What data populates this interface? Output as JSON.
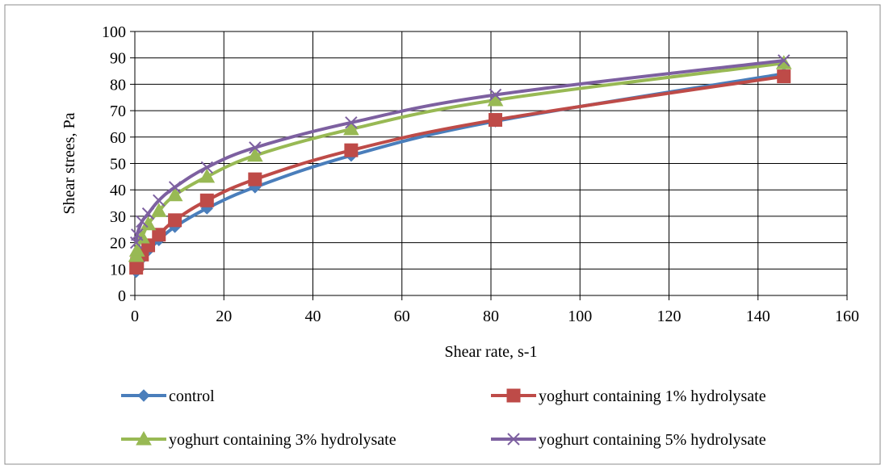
{
  "chart_data": {
    "type": "line",
    "title": "",
    "xlabel": "Shear rate, s-1",
    "ylabel": "Shear  strees, Pa",
    "xlim": [
      0,
      160
    ],
    "ylim": [
      0,
      100
    ],
    "xticks": [
      0,
      20,
      40,
      60,
      80,
      100,
      120,
      140,
      160
    ],
    "yticks": [
      0,
      10,
      20,
      30,
      40,
      50,
      60,
      70,
      80,
      90,
      100
    ],
    "grid": true,
    "legend_position": "bottom",
    "series": [
      {
        "name": "control",
        "color": "#4a7ebb",
        "marker": "diamond",
        "x": [
          0.3,
          0.5,
          1.6,
          3,
          5.4,
          9,
          16.2,
          27,
          48.6,
          81,
          145.8
        ],
        "y": [
          9,
          11,
          14,
          17,
          21,
          26,
          33,
          41,
          53,
          66,
          84
        ]
      },
      {
        "name": "yoghurt containing 1% hydrolysate",
        "color": "#be4b48",
        "marker": "square",
        "x": [
          0.3,
          0.5,
          1.6,
          3,
          5.4,
          9,
          16.2,
          27,
          48.6,
          81,
          145.8
        ],
        "y": [
          10.5,
          12,
          15.5,
          19,
          23,
          28.5,
          36,
          44,
          55,
          66.5,
          83
        ]
      },
      {
        "name": "yoghurt containing 3% hydrolysate",
        "color": "#98b954",
        "marker": "triangle",
        "x": [
          0.3,
          0.5,
          1.6,
          3,
          5.4,
          9,
          16.2,
          27,
          48.6,
          81,
          145.8
        ],
        "y": [
          15,
          17,
          22,
          27,
          32,
          38,
          45,
          53,
          63,
          74,
          88
        ]
      },
      {
        "name": "yoghurt containing 5% hydrolysate",
        "color": "#7d60a0",
        "marker": "x",
        "x": [
          0.3,
          0.5,
          1.6,
          3,
          5.4,
          9,
          16.2,
          27,
          48.6,
          81,
          145.8
        ],
        "y": [
          20,
          23,
          28,
          31,
          36,
          41,
          48.5,
          56,
          65.5,
          76,
          89
        ]
      }
    ]
  }
}
